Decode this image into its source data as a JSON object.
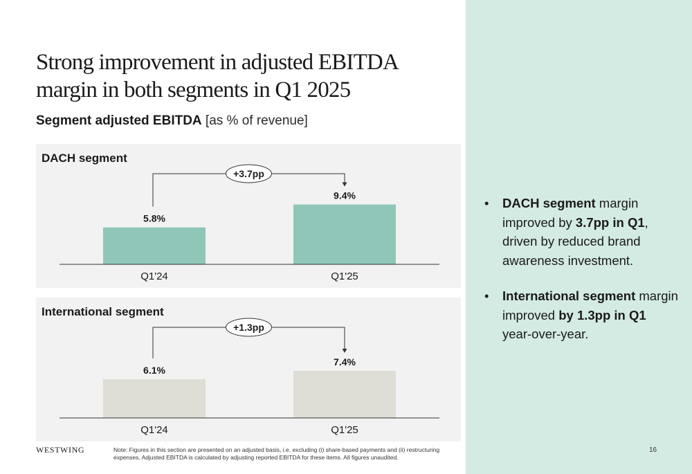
{
  "title": "Strong improvement in adjusted EBITDA margin in both segments in Q1 2025",
  "subtitle_bold": "Segment adjusted EBITDA",
  "subtitle_rest": " [as % of revenue]",
  "chart_data": [
    {
      "type": "bar",
      "title": "DACH segment",
      "categories": [
        "Q1'24",
        "Q1'25"
      ],
      "values": [
        5.8,
        9.4
      ],
      "value_labels": [
        "5.8%",
        "9.4%"
      ],
      "delta_label": "+3.7pp",
      "bar_color": "#8fc6b7",
      "ylim": [
        0,
        10
      ],
      "grid": false,
      "legend": "none"
    },
    {
      "type": "bar",
      "title": "International segment",
      "categories": [
        "Q1'24",
        "Q1'25"
      ],
      "values": [
        6.1,
        7.4
      ],
      "value_labels": [
        "6.1%",
        "7.4%"
      ],
      "delta_label": "+1.3pp",
      "bar_color": "#deddd6",
      "ylim": [
        0,
        10
      ],
      "grid": false,
      "legend": "none"
    }
  ],
  "bullets": [
    {
      "parts": [
        {
          "text": "DACH segment",
          "bold": true
        },
        {
          "text": " margin improved by ",
          "bold": false
        },
        {
          "text": "3.7pp in Q1",
          "bold": true
        },
        {
          "text": ", driven by reduced brand awareness investment.",
          "bold": false
        }
      ]
    },
    {
      "parts": [
        {
          "text": "International segment",
          "bold": true
        },
        {
          "text": " margin improved ",
          "bold": false
        },
        {
          "text": "by 1.3pp in Q1",
          "bold": true
        },
        {
          "text": " year-over-year.",
          "bold": false
        }
      ]
    }
  ],
  "footer": {
    "logo": "WESTWING",
    "note": "Note: Figures in this section are presented on an adjusted basis, i.e. excluding (i) share-based payments and (ii) restructuring expenses. Adjusted EBITDA is calculated by adjusting reported EBITDA for these items. All figures unaudited.",
    "page_number": "16"
  },
  "colors": {
    "accent_panel": "#d4ebe3",
    "chart_background": "#f2f2f2"
  }
}
